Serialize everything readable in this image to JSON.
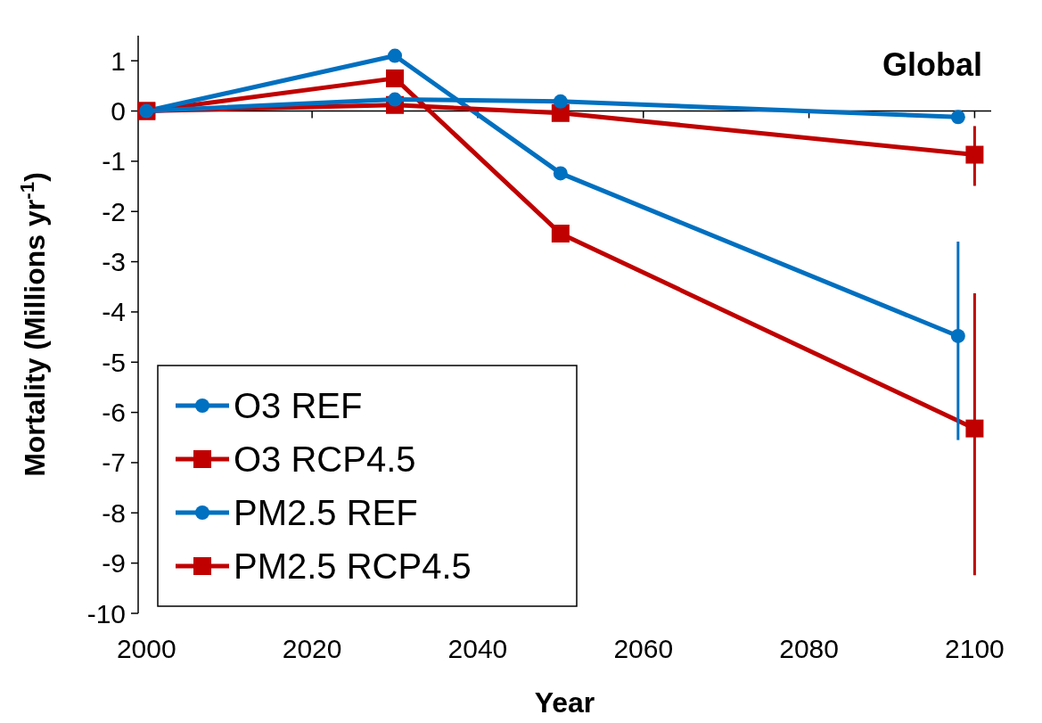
{
  "chart_data": {
    "type": "line",
    "title": "Global",
    "xlabel": "Year",
    "ylabel": "Mortality (Millions yr$^{-1}$)",
    "xlim": [
      1999,
      2102
    ],
    "xticks": [
      2000,
      2020,
      2040,
      2060,
      2080,
      2100
    ],
    "ylim": [
      -10,
      1.5
    ],
    "yticks": [
      -10,
      -9,
      -8,
      -7,
      -6,
      -5,
      -4,
      -3,
      -2,
      -1,
      0,
      1
    ],
    "legend": "bottom left",
    "line_style": "solid",
    "series": [
      {
        "name": "O3 REF",
        "color": "#0070c0",
        "marker": "circle",
        "x": [
          2000,
          2030,
          2050,
          2098
        ],
        "values": [
          0,
          0.23,
          0.19,
          -0.12
        ]
      },
      {
        "name": "O3 RCP4.5",
        "color": "#c00000",
        "marker": "square",
        "x": [
          2000,
          2030,
          2050,
          2100
        ],
        "values": [
          0,
          0.12,
          -0.04,
          -0.87
        ],
        "errors": [
          null,
          null,
          null,
          [
            -1.49,
            -0.3
          ]
        ]
      },
      {
        "name": "PM2.5 REF",
        "color": "#0070c0",
        "marker": "circle",
        "x": [
          2000,
          2030,
          2050,
          2098
        ],
        "values": [
          0,
          1.1,
          -1.24,
          -4.48
        ],
        "errors": [
          null,
          null,
          null,
          [
            -6.55,
            -2.6
          ]
        ]
      },
      {
        "name": "PM2.5 RCP4.5",
        "color": "#c00000",
        "marker": "square",
        "x": [
          2000,
          2030,
          2050,
          2100
        ],
        "values": [
          0,
          0.65,
          -2.44,
          -6.32
        ],
        "errors": [
          null,
          null,
          null,
          [
            -9.24,
            -3.63
          ]
        ]
      }
    ]
  }
}
